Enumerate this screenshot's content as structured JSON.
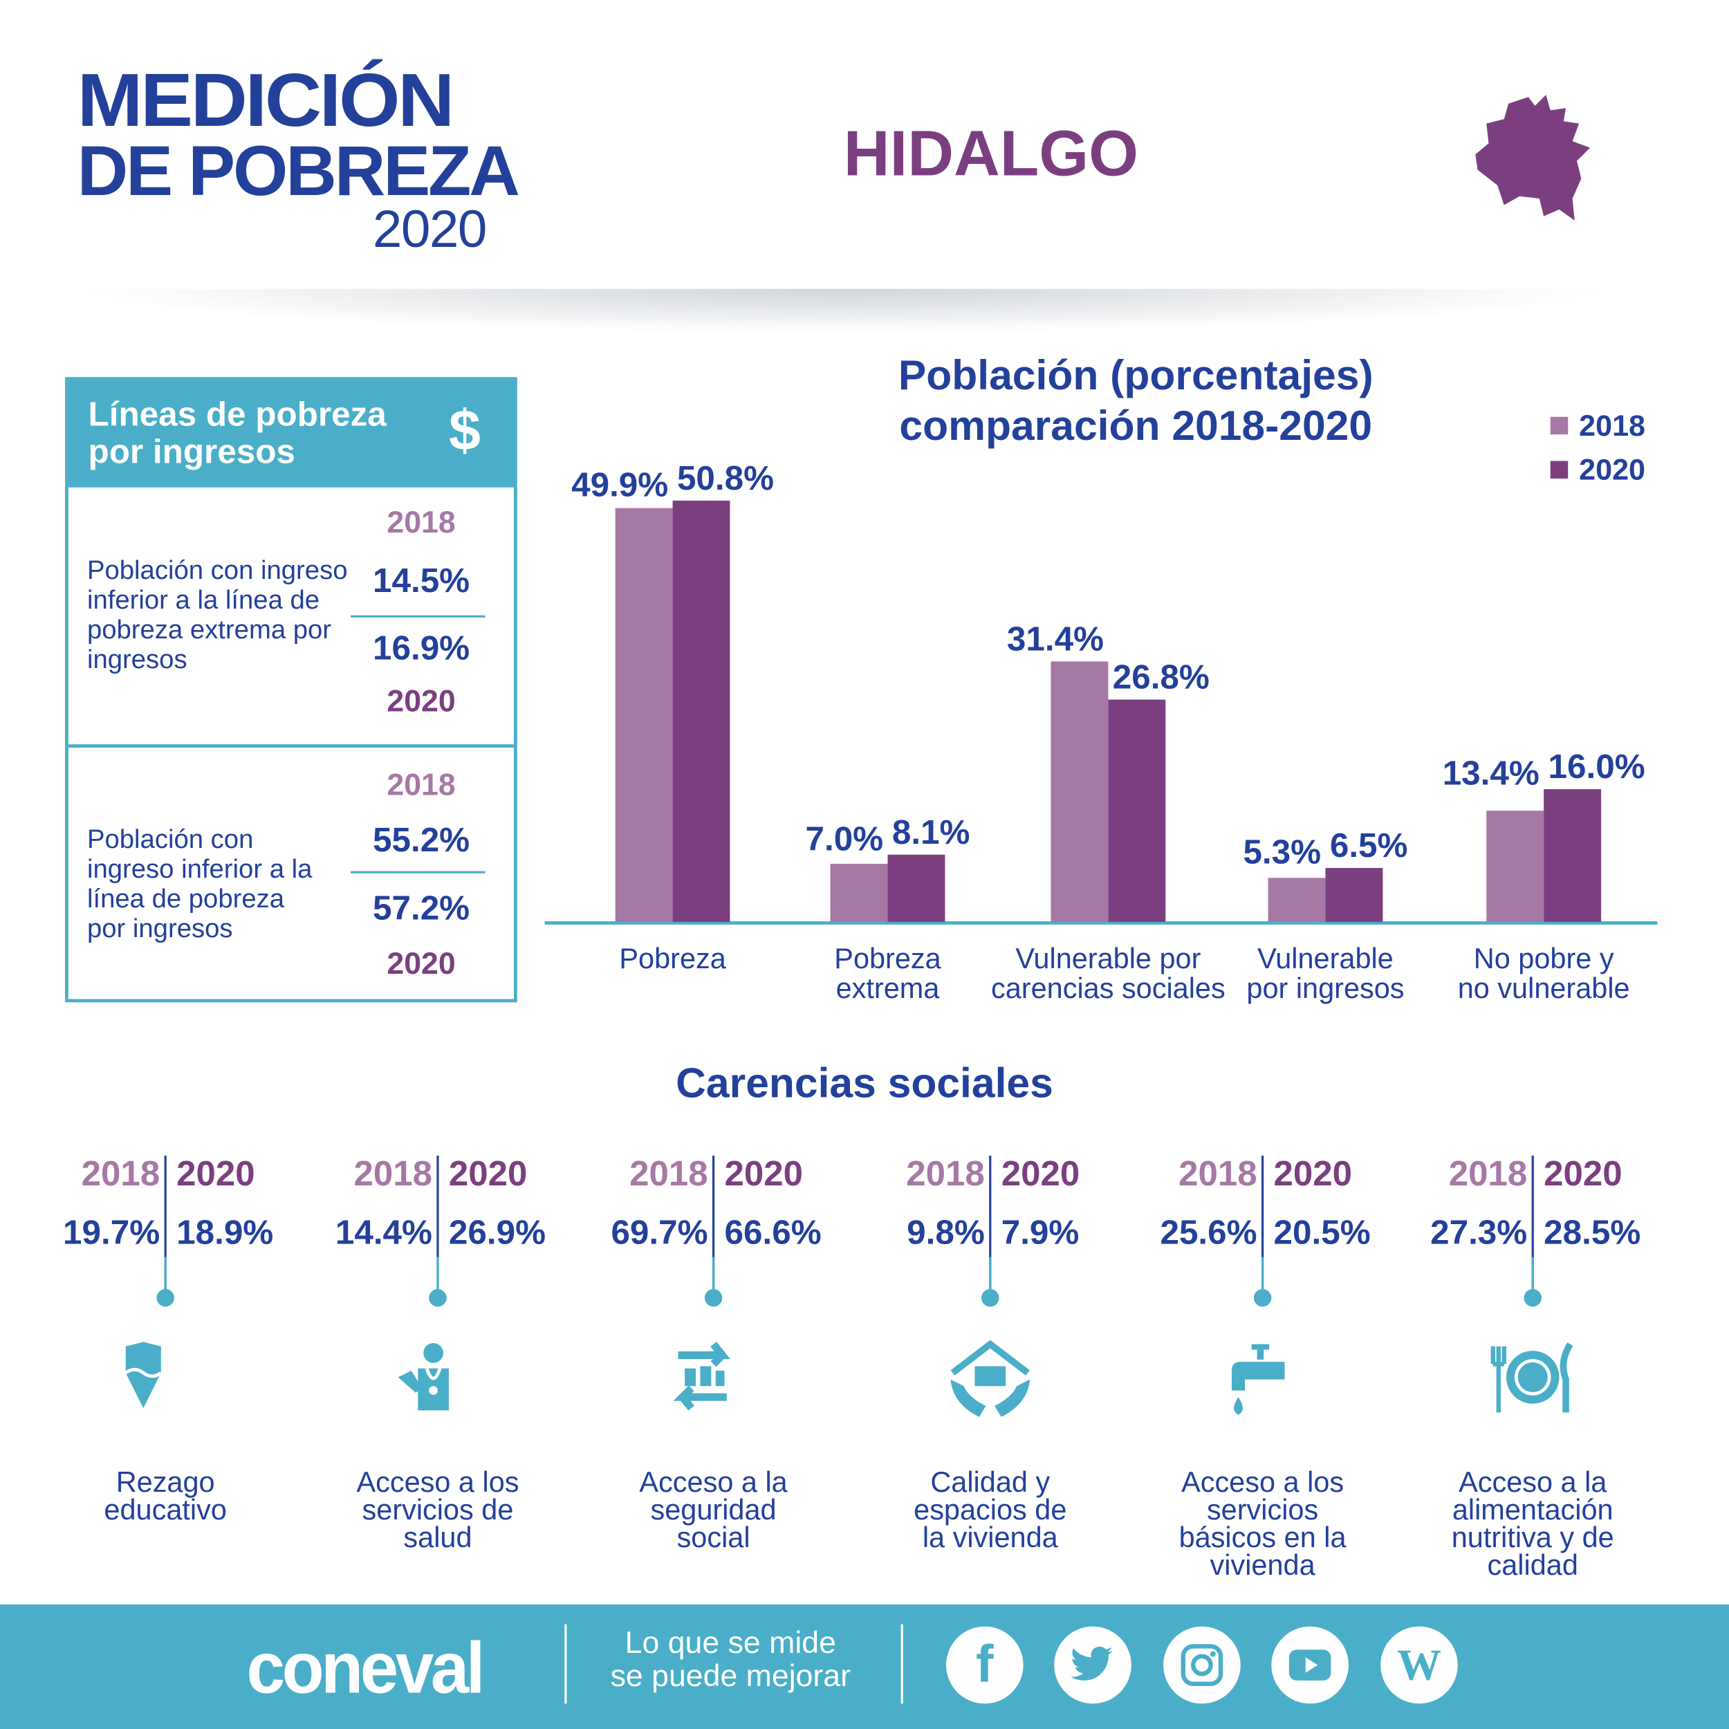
{
  "header": {
    "logo_line1": "MEDICIÓN",
    "logo_line2": "DE POBREZA",
    "logo_year": "2020",
    "state": "HIDALGO"
  },
  "income_box": {
    "title": "Líneas de pobreza por ingresos",
    "currency_symbol": "$",
    "sections": [
      {
        "label": "Población con ingreso inferior a la línea de pobreza extrema por ingresos",
        "year_a": "2018",
        "value_a": "14.5%",
        "value_b": "16.9%",
        "year_b": "2020"
      },
      {
        "label": "Población con ingreso inferior a la línea de pobreza por ingresos",
        "year_a": "2018",
        "value_a": "55.2%",
        "value_b": "57.2%",
        "year_b": "2020"
      }
    ]
  },
  "colors": {
    "navy": "#23409a",
    "purple_2020": "#7b3f80",
    "purple_2018": "#a678a4",
    "teal": "#4aaec8"
  },
  "chart_data": {
    "type": "bar",
    "title": "Población (porcentajes)",
    "subtitle": "comparación 2018-2020",
    "categories": [
      "Pobreza",
      "Pobreza extrema",
      "Vulnerable por carencias sociales",
      "Vulnerable por ingresos",
      "No pobre y no vulnerable"
    ],
    "category_lines": [
      [
        "Pobreza"
      ],
      [
        "Pobreza",
        "extrema"
      ],
      [
        "Vulnerable por",
        "carencias sociales"
      ],
      [
        "Vulnerable",
        "por ingresos"
      ],
      [
        "No pobre y",
        "no vulnerable"
      ]
    ],
    "series": [
      {
        "name": "2018",
        "color": "#a678a4",
        "values": [
          49.9,
          7.0,
          31.4,
          5.3,
          13.4
        ],
        "labels": [
          "49.9%",
          "7.0%",
          "31.4%",
          "5.3%",
          "13.4%"
        ]
      },
      {
        "name": "2020",
        "color": "#7b3f80",
        "values": [
          50.8,
          8.1,
          26.8,
          6.5,
          16.0
        ],
        "labels": [
          "50.8%",
          "8.1%",
          "26.8%",
          "6.5%",
          "16.0%"
        ]
      }
    ],
    "ylim": [
      0,
      55
    ],
    "legend": "top-right",
    "grid": false
  },
  "carencias": {
    "title": "Carencias sociales",
    "items": [
      {
        "name": "Rezago\neducativo",
        "icon": "pencil-icon",
        "y2018": "2018",
        "y2020": "2020",
        "v2018": "19.7%",
        "v2020": "18.9%"
      },
      {
        "name": "Acceso a los\nservicios de\nsalud",
        "icon": "doctor-icon",
        "y2018": "2018",
        "y2020": "2020",
        "v2018": "14.4%",
        "v2020": "26.9%"
      },
      {
        "name": "Acceso a la\nseguridad\nsocial",
        "icon": "social-security-icon",
        "y2018": "2018",
        "y2020": "2020",
        "v2018": "69.7%",
        "v2020": "66.6%"
      },
      {
        "name": "Calidad y\nespacios de\nla vivienda",
        "icon": "house-hands-icon",
        "y2018": "2018",
        "y2020": "2020",
        "v2018": "9.8%",
        "v2020": "7.9%"
      },
      {
        "name": "Acceso a los\nservicios\nbásicos en la\nvivienda",
        "icon": "faucet-icon",
        "y2018": "2018",
        "y2020": "2020",
        "v2018": "25.6%",
        "v2020": "20.5%"
      },
      {
        "name": "Acceso a la\nalimentación\nnutritiva y de\ncalidad",
        "icon": "plate-icon",
        "y2018": "2018",
        "y2020": "2020",
        "v2018": "27.3%",
        "v2020": "28.5%"
      }
    ]
  },
  "footer": {
    "brand": "coneval",
    "tagline": "Lo que se mide\nse puede mejorar",
    "social": [
      "facebook-icon",
      "twitter-icon",
      "instagram-icon",
      "youtube-icon",
      "wikipedia-icon"
    ],
    "wiki_glyph": "W",
    "fb_glyph": "f"
  }
}
